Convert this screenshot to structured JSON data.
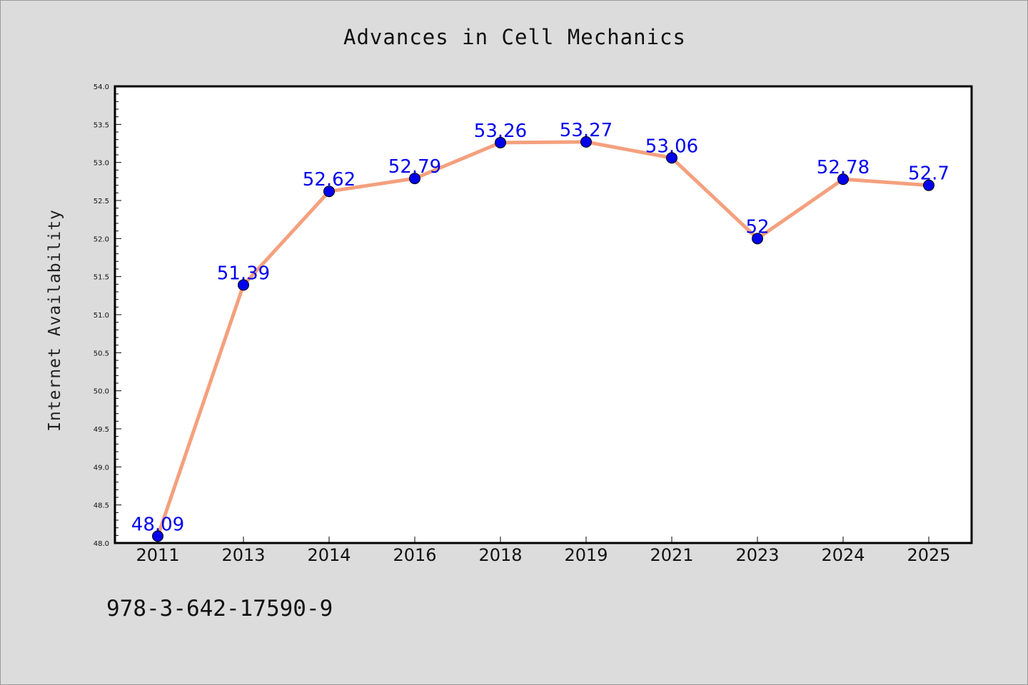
{
  "chart_data": {
    "type": "line",
    "title": "Advances in Cell Mechanics",
    "xlabel": "",
    "ylabel": "Internet Availability",
    "categories": [
      "2011",
      "2013",
      "2014",
      "2016",
      "2018",
      "2019",
      "2021",
      "2023",
      "2024",
      "2025"
    ],
    "series": [
      {
        "values": [
          48.09,
          51.39,
          52.62,
          52.79,
          53.26,
          53.27,
          53.06,
          52,
          52.78,
          52.7
        ],
        "data_labels": [
          "48.09",
          "51.39",
          "52.62",
          "52.79",
          "53.26",
          "53.27",
          "53.06",
          "52",
          "52.78",
          "52.7"
        ],
        "line_color": "#f4a07e",
        "marker_color": "#0000ee"
      }
    ],
    "ylim": [
      48.0,
      54.0
    ],
    "yticks": [
      "48.0",
      "48.5",
      "49.0",
      "49.5",
      "50.0",
      "50.5",
      "51.0",
      "51.5",
      "52.0",
      "52.5",
      "53.0",
      "53.5",
      "54.0"
    ],
    "grid": false,
    "legend": "none"
  },
  "footer": {
    "code": "978-3-642-17590-9"
  },
  "colors": {
    "background": "#dcdcdc",
    "plot_background": "#ffffff",
    "label_color": "#0000ee"
  }
}
